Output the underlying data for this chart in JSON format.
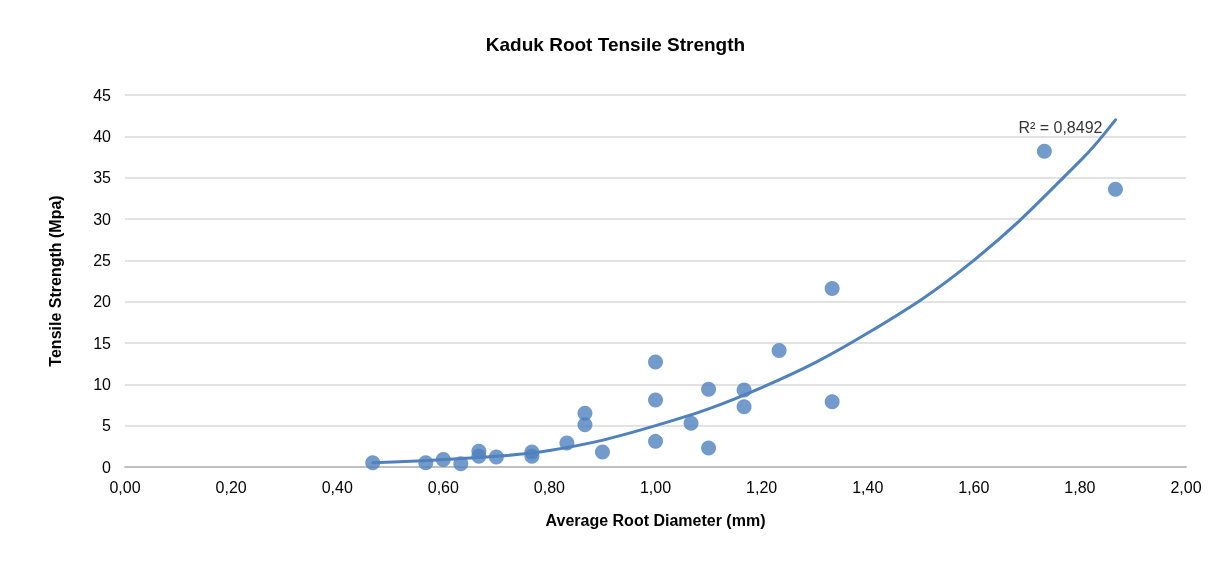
{
  "chart_data": {
    "type": "scatter",
    "title": "Kaduk Root Tensile Strength",
    "xlabel": "Average Root Diameter (mm)",
    "ylabel": "Tensile Strength (Mpa)",
    "series": [
      {
        "color": "#4f81bd",
        "marker": "circle",
        "x": [
          0.467,
          0.567,
          0.6,
          0.633,
          0.667,
          0.667,
          0.7,
          0.767,
          0.767,
          0.833,
          0.867,
          0.867,
          0.9,
          1.0,
          1.0,
          1.0,
          1.067,
          1.1,
          1.1,
          1.167,
          1.167,
          1.233,
          1.333,
          1.333,
          1.733,
          1.867
        ],
        "values": [
          0.5,
          0.5,
          0.9,
          0.4,
          1.9,
          1.3,
          1.2,
          1.8,
          1.3,
          2.9,
          6.5,
          5.1,
          1.8,
          12.7,
          8.1,
          3.1,
          5.3,
          9.4,
          2.3,
          9.3,
          7.3,
          14.1,
          21.6,
          7.9,
          38.2,
          33.6
        ]
      },
      {
        "type": "line",
        "marker": "none",
        "color": "#4f81bd",
        "x": [
          0.467,
          0.6,
          0.8,
          1.0,
          1.2,
          1.4,
          1.6,
          1.8,
          1.867
        ],
        "values": [
          0.5,
          0.9,
          2.0,
          5.0,
          9.6,
          16.2,
          25.0,
          37.0,
          42.0
        ]
      }
    ],
    "annotations": [
      {
        "text": "R² = 0,8492",
        "x": 1.867,
        "y": 42
      }
    ],
    "xlim": [
      0,
      2
    ],
    "xticks": [
      {
        "value": 0,
        "label": "0,00"
      },
      {
        "value": 0.2,
        "label": "0,20"
      },
      {
        "value": 0.4,
        "label": "0,40"
      },
      {
        "value": 0.6,
        "label": "0,60"
      },
      {
        "value": 0.8,
        "label": "0,80"
      },
      {
        "value": 1,
        "label": "1,00"
      },
      {
        "value": 1.2,
        "label": "1,20"
      },
      {
        "value": 1.4,
        "label": "1,40"
      },
      {
        "value": 1.6,
        "label": "1,60"
      },
      {
        "value": 1.8,
        "label": "1,80"
      },
      {
        "value": 2,
        "label": "2,00"
      }
    ],
    "ylim": [
      0,
      45
    ],
    "yticks": [
      0,
      5,
      10,
      15,
      20,
      25,
      30,
      35,
      40,
      45
    ],
    "grid": "y",
    "line_style": "solid"
  }
}
